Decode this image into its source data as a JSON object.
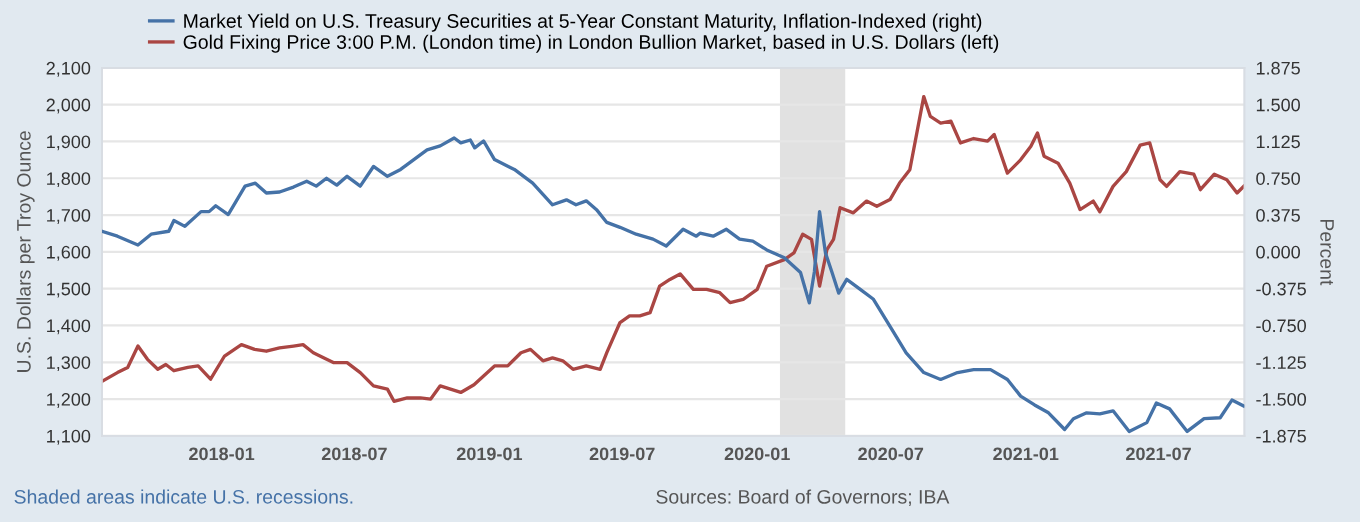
{
  "chart_data": {
    "type": "line",
    "ylabel": "U.S. Dollars per Troy Ounce",
    "y2label": "Percent",
    "annotations": [
      "Shaded areas indicate U.S. recessions.",
      "Sources: Board of Governors; IBA"
    ],
    "xlim": [
      "2017-07-22",
      "2021-10-26"
    ],
    "xticks": [
      "2018-01",
      "2018-07",
      "2019-01",
      "2019-07",
      "2020-01",
      "2020-07",
      "2021-01",
      "2021-07"
    ],
    "ylim": [
      1100,
      2100
    ],
    "yticks": [
      {
        "value": 1100,
        "label": "1,100"
      },
      {
        "value": 1200,
        "label": "1,200"
      },
      {
        "value": 1300,
        "label": "1,300"
      },
      {
        "value": 1400,
        "label": "1,400"
      },
      {
        "value": 1500,
        "label": "1,500"
      },
      {
        "value": 1600,
        "label": "1,600"
      },
      {
        "value": 1700,
        "label": "1,700"
      },
      {
        "value": 1800,
        "label": "1,800"
      },
      {
        "value": 1900,
        "label": "1,900"
      },
      {
        "value": 2000,
        "label": "2,000"
      },
      {
        "value": 2100,
        "label": "2,100"
      }
    ],
    "y2lim": [
      -1.875,
      1.875
    ],
    "y2ticks": [
      {
        "value": -1.875,
        "label": "-1.875"
      },
      {
        "value": -1.5,
        "label": "-1.500"
      },
      {
        "value": -1.125,
        "label": "-1.125"
      },
      {
        "value": -0.75,
        "label": "-0.750"
      },
      {
        "value": -0.375,
        "label": "-0.375"
      },
      {
        "value": 0,
        "label": "0.000"
      },
      {
        "value": 0.375,
        "label": "0.375"
      },
      {
        "value": 0.75,
        "label": "0.750"
      },
      {
        "value": 1.125,
        "label": "1.125"
      },
      {
        "value": 1.5,
        "label": "1.500"
      },
      {
        "value": 1.875,
        "label": "1.875"
      }
    ],
    "bands": [
      {
        "axis": "x",
        "from": "2020-02-01",
        "to": "2020-04-30",
        "color": "#e1e1e1"
      }
    ],
    "grid": "y",
    "legend": "top left",
    "marker": "none",
    "line_style": "solid",
    "series": [
      {
        "name": "Market Yield on U.S. Treasury Securities at 5-Year Constant Maturity, Inflation-Indexed (right)",
        "color": "#4572a7",
        "axis": "y2",
        "x": [
          "2017-07-22",
          "2017-08-12",
          "2017-09-09",
          "2017-09-27",
          "2017-10-21",
          "2017-10-28",
          "2017-11-12",
          "2017-12-04",
          "2017-12-15",
          "2017-12-24",
          "2018-01-10",
          "2018-02-02",
          "2018-02-16",
          "2018-03-03",
          "2018-03-21",
          "2018-04-09",
          "2018-04-27",
          "2018-05-10",
          "2018-05-24",
          "2018-06-07",
          "2018-06-21",
          "2018-07-09",
          "2018-07-27",
          "2018-08-15",
          "2018-09-02",
          "2018-09-20",
          "2018-10-08",
          "2018-10-26",
          "2018-11-14",
          "2018-11-23",
          "2018-12-06",
          "2018-12-12",
          "2018-12-24",
          "2019-01-08",
          "2019-02-04",
          "2019-03-01",
          "2019-03-28",
          "2019-04-16",
          "2019-04-29",
          "2019-05-13",
          "2019-05-27",
          "2019-06-10",
          "2019-06-28",
          "2019-07-20",
          "2019-08-12",
          "2019-08-30",
          "2019-09-22",
          "2019-10-10",
          "2019-10-15",
          "2019-11-02",
          "2019-11-20",
          "2019-12-08",
          "2019-12-26",
          "2020-01-14",
          "2020-02-07",
          "2020-02-29",
          "2020-03-12",
          "2020-03-19",
          "2020-03-26",
          "2020-04-03",
          "2020-04-12",
          "2020-04-21",
          "2020-05-02",
          "2020-05-20",
          "2020-06-07",
          "2020-06-30",
          "2020-07-22",
          "2020-08-15",
          "2020-09-07",
          "2020-09-30",
          "2020-10-22",
          "2020-11-14",
          "2020-12-07",
          "2020-12-25",
          "2021-01-13",
          "2021-02-01",
          "2021-02-23",
          "2021-03-07",
          "2021-03-25",
          "2021-04-12",
          "2021-04-30",
          "2021-05-22",
          "2021-06-15",
          "2021-06-28",
          "2021-07-16",
          "2021-08-09",
          "2021-09-01",
          "2021-09-23",
          "2021-10-09",
          "2021-10-25"
        ],
        "values": [
          0.21,
          0.16,
          0.07,
          0.18,
          0.21,
          0.32,
          0.26,
          0.41,
          0.41,
          0.47,
          0.38,
          0.67,
          0.7,
          0.6,
          0.61,
          0.66,
          0.72,
          0.67,
          0.75,
          0.68,
          0.77,
          0.67,
          0.87,
          0.77,
          0.84,
          0.94,
          1.04,
          1.08,
          1.16,
          1.11,
          1.14,
          1.06,
          1.13,
          0.94,
          0.84,
          0.7,
          0.48,
          0.53,
          0.48,
          0.52,
          0.43,
          0.3,
          0.25,
          0.18,
          0.13,
          0.06,
          0.23,
          0.16,
          0.19,
          0.16,
          0.23,
          0.13,
          0.11,
          0.02,
          -0.06,
          -0.21,
          -0.52,
          -0.2,
          0.41,
          -0.01,
          -0.21,
          -0.42,
          -0.28,
          -0.38,
          -0.48,
          -0.76,
          -1.03,
          -1.23,
          -1.3,
          -1.23,
          -1.2,
          -1.2,
          -1.3,
          -1.47,
          -1.56,
          -1.64,
          -1.81,
          -1.7,
          -1.64,
          -1.65,
          -1.62,
          -1.83,
          -1.74,
          -1.54,
          -1.6,
          -1.83,
          -1.7,
          -1.69,
          -1.51,
          -1.57
        ]
      },
      {
        "name": "Gold Fixing Price 3:00 P.M. (London time) in London Bullion Market, based in U.S. Dollars (left)",
        "color": "#aa4643",
        "x": [
          "2017-07-22",
          "2017-08-12",
          "2017-08-26",
          "2017-09-09",
          "2017-09-22",
          "2017-10-06",
          "2017-10-17",
          "2017-10-28",
          "2017-11-16",
          "2017-11-30",
          "2017-12-17",
          "2018-01-05",
          "2018-01-28",
          "2018-02-15",
          "2018-03-03",
          "2018-03-21",
          "2018-04-09",
          "2018-04-22",
          "2018-05-06",
          "2018-05-15",
          "2018-06-03",
          "2018-06-21",
          "2018-07-09",
          "2018-07-27",
          "2018-08-15",
          "2018-08-24",
          "2018-09-11",
          "2018-09-29",
          "2018-10-13",
          "2018-10-26",
          "2018-11-23",
          "2018-12-11",
          "2019-01-08",
          "2019-01-26",
          "2019-02-13",
          "2019-02-26",
          "2019-03-15",
          "2019-03-28",
          "2019-04-11",
          "2019-04-25",
          "2019-05-13",
          "2019-06-01",
          "2019-06-10",
          "2019-06-28",
          "2019-07-11",
          "2019-07-25",
          "2019-08-08",
          "2019-08-21",
          "2019-09-04",
          "2019-09-18",
          "2019-10-06",
          "2019-10-24",
          "2019-11-11",
          "2019-11-25",
          "2019-12-13",
          "2020-01-01",
          "2020-01-14",
          "2020-02-07",
          "2020-02-20",
          "2020-03-03",
          "2020-03-15",
          "2020-03-26",
          "2020-04-05",
          "2020-04-14",
          "2020-04-23",
          "2020-05-11",
          "2020-05-29",
          "2020-06-12",
          "2020-06-30",
          "2020-07-13",
          "2020-07-27",
          "2020-08-15",
          "2020-08-24",
          "2020-09-07",
          "2020-09-21",
          "2020-10-04",
          "2020-10-22",
          "2020-11-10",
          "2020-11-19",
          "2020-12-07",
          "2020-12-25",
          "2021-01-08",
          "2021-01-17",
          "2021-01-26",
          "2021-02-14",
          "2021-03-02",
          "2021-03-16",
          "2021-04-03",
          "2021-04-12",
          "2021-04-30",
          "2021-05-18",
          "2021-06-06",
          "2021-06-19",
          "2021-07-03",
          "2021-07-12",
          "2021-07-30",
          "2021-08-18",
          "2021-08-27",
          "2021-09-15",
          "2021-10-02",
          "2021-10-16",
          "2021-10-25"
        ],
        "values": [
          1248,
          1272,
          1286,
          1344,
          1308,
          1281,
          1294,
          1277,
          1286,
          1290,
          1254,
          1317,
          1348,
          1335,
          1330,
          1339,
          1344,
          1348,
          1326,
          1317,
          1299,
          1299,
          1272,
          1236,
          1227,
          1194,
          1203,
          1203,
          1200,
          1236,
          1218,
          1239,
          1290,
          1290,
          1326,
          1335,
          1304,
          1312,
          1304,
          1281,
          1290,
          1281,
          1326,
          1408,
          1426,
          1426,
          1435,
          1507,
          1525,
          1540,
          1498,
          1498,
          1489,
          1462,
          1471,
          1498,
          1561,
          1579,
          1597,
          1648,
          1634,
          1507,
          1606,
          1634,
          1720,
          1706,
          1738,
          1724,
          1742,
          1787,
          1823,
          2022,
          1968,
          1950,
          1955,
          1896,
          1908,
          1901,
          1919,
          1814,
          1850,
          1887,
          1923,
          1860,
          1841,
          1787,
          1715,
          1738,
          1709,
          1778,
          1818,
          1890,
          1896,
          1796,
          1778,
          1818,
          1811,
          1769,
          1811,
          1796,
          1760,
          1778
        ]
      }
    ]
  }
}
